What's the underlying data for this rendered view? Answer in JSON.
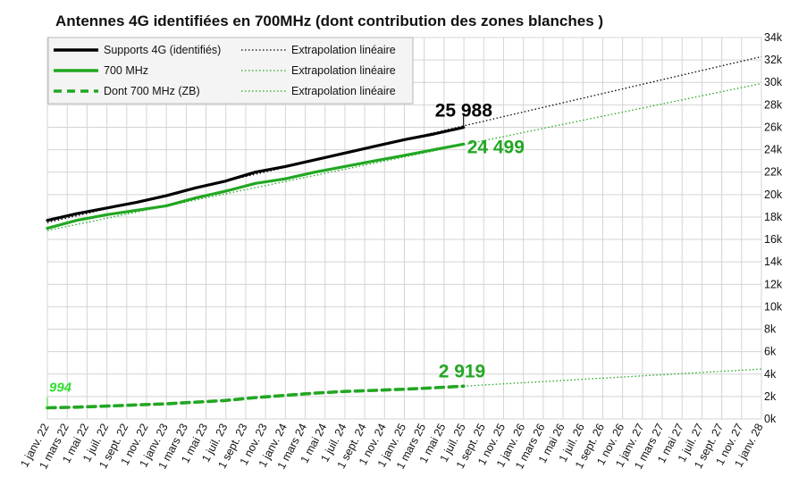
{
  "chart_data": {
    "type": "line",
    "title": "Antennes 4G identifiées en 700MHz (dont contribution des zones blanches )",
    "xlabel": "",
    "ylabel": "",
    "x_domain": [
      "2022-01-01",
      "2028-01-01"
    ],
    "ylim": [
      0,
      34000
    ],
    "grid": true,
    "legend_position": "top-left",
    "y_ticks": [
      "0k",
      "2k",
      "4k",
      "6k",
      "8k",
      "10k",
      "12k",
      "14k",
      "16k",
      "18k",
      "20k",
      "22k",
      "24k",
      "26k",
      "28k",
      "30k",
      "32k",
      "34k"
    ],
    "x_ticks": [
      "1 janv. 22",
      "1 mars 22",
      "1 mai 22",
      "1 juil. 22",
      "1 sept. 22",
      "1 nov. 22",
      "1 janv. 23",
      "1 mars 23",
      "1 mai 23",
      "1 juil. 23",
      "1 sept. 23",
      "1 nov. 23",
      "1 janv. 24",
      "1 mars 24",
      "1 mai 24",
      "1 juil. 24",
      "1 sept. 24",
      "1 nov. 24",
      "1 janv. 25",
      "1 mars 25",
      "1 mai 25",
      "1 juil. 25",
      "1 sept. 25",
      "1 nov. 25",
      "1 janv. 26",
      "1 mars 26",
      "1 mai 26",
      "1 juil. 26",
      "1 sept. 26",
      "1 nov. 26",
      "1 janv. 27",
      "1 mars 27",
      "1 mai 27",
      "1 juil. 27",
      "1 sept. 27",
      "1 nov. 27",
      "1 janv. 28"
    ],
    "series": [
      {
        "name": "Supports 4G (identifiés)",
        "color": "#000000",
        "style": "solid",
        "x": [
          "2022-01-01",
          "2022-04-01",
          "2022-07-01",
          "2022-10-01",
          "2023-01-01",
          "2023-04-01",
          "2023-07-01",
          "2023-10-01",
          "2024-01-01",
          "2024-04-01",
          "2024-07-01",
          "2024-10-01",
          "2025-01-01",
          "2025-04-01",
          "2025-07-01"
        ],
        "y": [
          17700,
          18300,
          18800,
          19300,
          19900,
          20600,
          21200,
          22000,
          22500,
          23100,
          23700,
          24300,
          24900,
          25400,
          25988
        ]
      },
      {
        "name": "Extrapolation linéaire",
        "color": "#000000",
        "style": "dotted",
        "x": [
          "2022-01-01",
          "2028-01-01"
        ],
        "y": [
          17500,
          32300
        ]
      },
      {
        "name": "700 MHz",
        "color": "#22a722",
        "style": "solid",
        "x": [
          "2022-01-01",
          "2022-04-01",
          "2022-07-01",
          "2022-10-01",
          "2023-01-01",
          "2023-04-01",
          "2023-07-01",
          "2023-10-01",
          "2024-01-01",
          "2024-04-01",
          "2024-07-01",
          "2024-10-01",
          "2025-01-01",
          "2025-04-01",
          "2025-07-01"
        ],
        "y": [
          17000,
          17700,
          18200,
          18600,
          19000,
          19700,
          20300,
          21000,
          21400,
          22000,
          22500,
          23000,
          23500,
          24000,
          24499
        ]
      },
      {
        "name": "Extrapolation linéaire",
        "color": "#22a722",
        "style": "dotted",
        "x": [
          "2022-01-01",
          "2028-01-01"
        ],
        "y": [
          16800,
          29900
        ]
      },
      {
        "name": "Dont 700 MHz (ZB)",
        "color": "#22a722",
        "style": "dashed",
        "x": [
          "2022-01-01",
          "2022-04-01",
          "2022-07-01",
          "2022-10-01",
          "2023-01-01",
          "2023-04-01",
          "2023-07-01",
          "2023-10-01",
          "2024-01-01",
          "2024-04-01",
          "2024-07-01",
          "2024-10-01",
          "2025-01-01",
          "2025-04-01",
          "2025-07-01"
        ],
        "y": [
          994,
          1050,
          1150,
          1250,
          1350,
          1500,
          1650,
          1900,
          2100,
          2300,
          2450,
          2550,
          2650,
          2780,
          2919
        ]
      },
      {
        "name": "Extrapolation linéaire",
        "color": "#22a722",
        "style": "dotted",
        "x": [
          "2025-07-01",
          "2028-01-01"
        ],
        "y": [
          2919,
          4450
        ]
      }
    ],
    "annotations": [
      {
        "text": "25 988",
        "x": "2025-07-01",
        "y": 25988,
        "color": "#000000",
        "style": "bold"
      },
      {
        "text": "24 499",
        "x": "2025-07-01",
        "y": 24499,
        "color": "#22a722",
        "style": "bold"
      },
      {
        "text": "2 919",
        "x": "2025-07-01",
        "y": 2919,
        "color": "#22a722",
        "style": "bold"
      },
      {
        "text": "994",
        "x": "2022-01-01",
        "y": 994,
        "color": "#33dd33",
        "style": "bold-italic"
      }
    ]
  },
  "legend": [
    {
      "label": "Supports 4G (identifiés)",
      "color": "#000000",
      "style": "solid"
    },
    {
      "label": "Extrapolation linéaire",
      "color": "#000000",
      "style": "dotted"
    },
    {
      "label": "700 MHz",
      "color": "#22a722",
      "style": "solid"
    },
    {
      "label": "Extrapolation linéaire",
      "color": "#22a722",
      "style": "dotted"
    },
    {
      "label": "Dont 700 MHz (ZB)",
      "color": "#22a722",
      "style": "dashed"
    },
    {
      "label": "Extrapolation linéaire",
      "color": "#22a722",
      "style": "dotted"
    }
  ]
}
